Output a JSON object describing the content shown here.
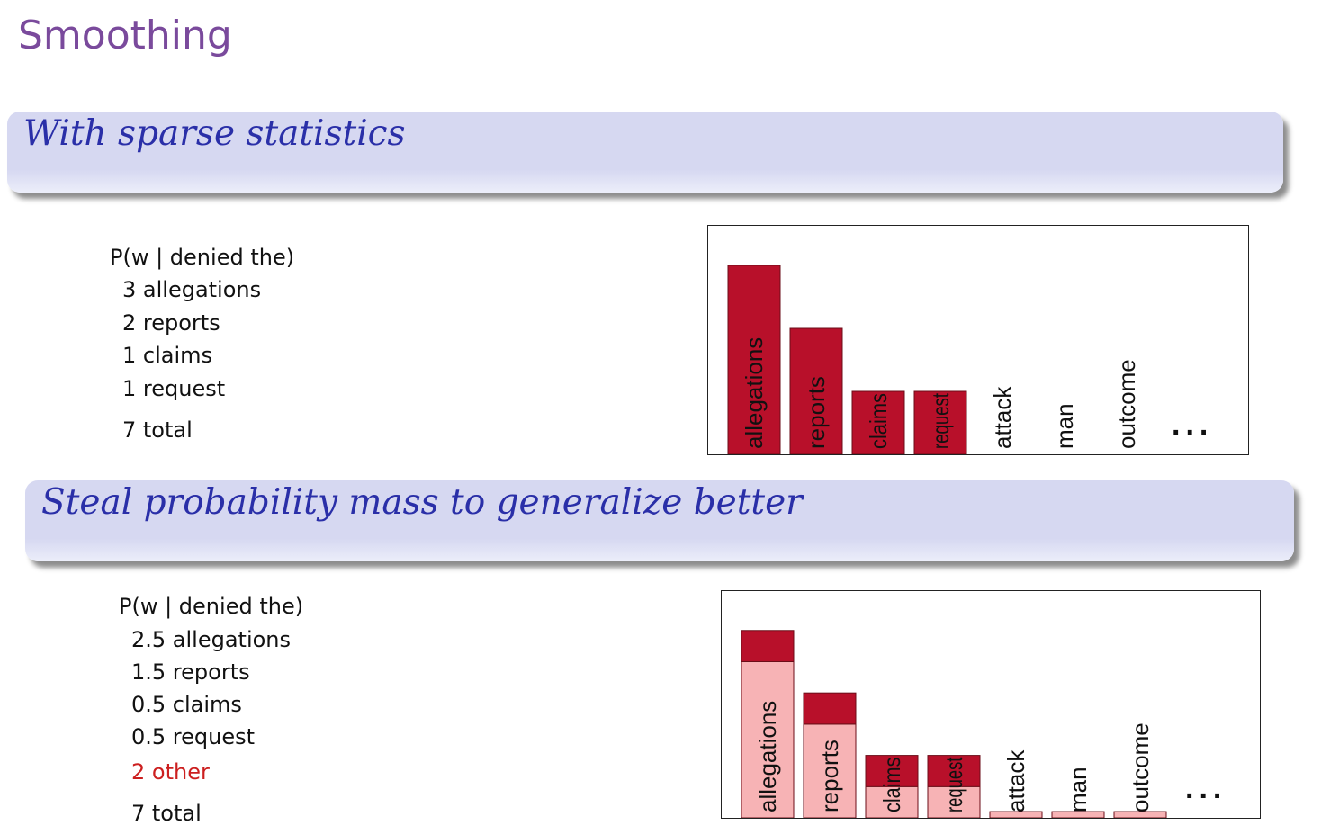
{
  "slide": {
    "title": "Smoothing"
  },
  "section1": {
    "block_title": "With sparse statistics",
    "header": "P(w | denied the)",
    "lines": [
      "3 allegations",
      "2 reports",
      "1 claims",
      "1 request"
    ],
    "total": "7 total"
  },
  "section2": {
    "block_title": "Steal probability mass to generalize better",
    "header": "P(w | denied the)",
    "lines": [
      "2.5 allegations",
      "1.5 reports",
      "0.5 claims",
      "0.5 request"
    ],
    "other": "2 other",
    "total": "7 total"
  },
  "colors": {
    "title": "#7a4a9c",
    "block_title": "#2a2fa8",
    "bar_dark": "#b8102a",
    "bar_light": "#f7b3b5",
    "other_text": "#cc1f1f"
  },
  "chart_data": [
    {
      "type": "bar",
      "categories": [
        "allegations",
        "reports",
        "claims",
        "request",
        "attack",
        "man",
        "outcome"
      ],
      "values": [
        3,
        2,
        1,
        1,
        0,
        0,
        0
      ],
      "ellipsis": "...",
      "ylim": [
        0,
        3.4
      ]
    },
    {
      "type": "bar",
      "stacked": true,
      "categories": [
        "allegations",
        "reports",
        "claims",
        "request",
        "attack",
        "man",
        "outcome"
      ],
      "series": [
        {
          "values": [
            2.5,
            1.5,
            0.5,
            0.5,
            0.1,
            0.1,
            0.1
          ],
          "color": "#f7b3b5"
        },
        {
          "values": [
            0.5,
            0.5,
            0.5,
            0.5,
            0,
            0,
            0
          ],
          "color": "#b8102a"
        }
      ],
      "ellipsis": "...",
      "ylim": [
        0,
        3.4
      ]
    }
  ]
}
